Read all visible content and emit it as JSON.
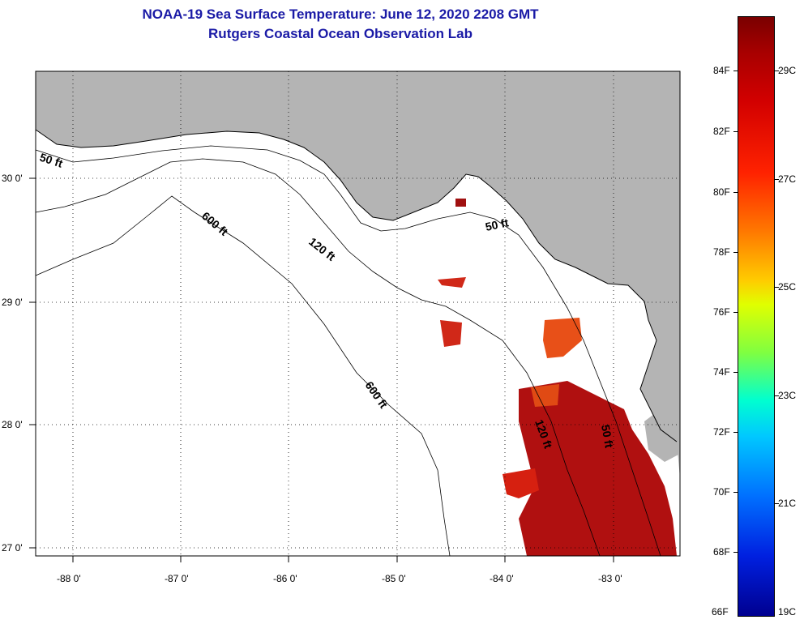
{
  "title": {
    "line1": "NOAA-19 Sea Surface Temperature:  June 12, 2020 2208 GMT",
    "line2": "Rutgers Coastal Ocean Observation Lab"
  },
  "colors": {
    "title": "#1a1aa6",
    "land": "#b4b4b4",
    "water": "#ffffff",
    "sst": "#b01010"
  },
  "axes": {
    "lon_labels": [
      "-88 0'",
      "-87 0'",
      "-86 0'",
      "-85 0'",
      "-84 0'",
      "-83 0'"
    ],
    "lat_labels": [
      "30 0'",
      "29 0'",
      "28 0'",
      "27 0'"
    ]
  },
  "contours": [
    {
      "label": "50 ft",
      "name": "contour-label-50ft-west"
    },
    {
      "label": "50 ft",
      "name": "contour-label-50ft-bigbend"
    },
    {
      "label": "50 ft",
      "name": "contour-label-50ft-south"
    },
    {
      "label": "120 ft",
      "name": "contour-label-120ft-north"
    },
    {
      "label": "120 ft",
      "name": "contour-label-120ft-south"
    },
    {
      "label": "600 ft",
      "name": "contour-label-600ft-north"
    },
    {
      "label": "600 ft",
      "name": "contour-label-600ft-south"
    }
  ],
  "colorbar": {
    "fahrenheit": [
      "84F",
      "82F",
      "80F",
      "78F",
      "76F",
      "74F",
      "72F",
      "70F",
      "68F",
      "66F"
    ],
    "celsius": [
      "29C",
      "27C",
      "25C",
      "23C",
      "21C",
      "19C"
    ]
  }
}
